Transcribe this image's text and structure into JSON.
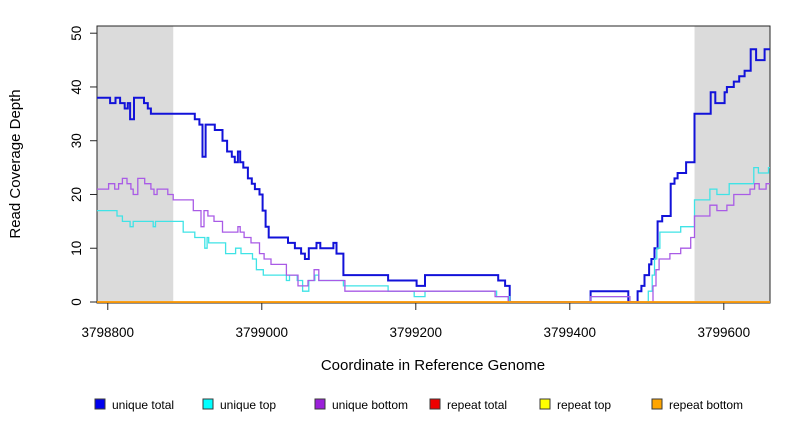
{
  "chart_data": {
    "type": "line",
    "subtype": "step",
    "title": "",
    "xlabel": "Coordinate in Reference Genome",
    "ylabel": "Read Coverage Depth",
    "xlim": [
      3798786,
      3799660
    ],
    "ylim": [
      0,
      50
    ],
    "x_ticks": [
      3798800,
      3799000,
      3799200,
      3799400,
      3799600
    ],
    "y_ticks": [
      0,
      10,
      20,
      30,
      40,
      50
    ],
    "grid": false,
    "legend_position": "bottom",
    "shade_color": "#DBDBDB",
    "shaded_x_regions": [
      [
        3798786,
        3798885
      ],
      [
        3799562,
        3799660
      ]
    ],
    "series": [
      {
        "name": "unique total",
        "color": "#1212D9",
        "legend_fill": "#0000EE",
        "width": 2,
        "points": [
          [
            3798786,
            38
          ],
          [
            3798803,
            37
          ],
          [
            3798810,
            38
          ],
          [
            3798816,
            37
          ],
          [
            3798822,
            36
          ],
          [
            3798826,
            37
          ],
          [
            3798829,
            34
          ],
          [
            3798834,
            38
          ],
          [
            3798847,
            37
          ],
          [
            3798852,
            36
          ],
          [
            3798856,
            35
          ],
          [
            3798913,
            34
          ],
          [
            3798919,
            33
          ],
          [
            3798923,
            27
          ],
          [
            3798927,
            33
          ],
          [
            3798939,
            32
          ],
          [
            3798949,
            30
          ],
          [
            3798955,
            28
          ],
          [
            3798961,
            27
          ],
          [
            3798965,
            26
          ],
          [
            3798969,
            28
          ],
          [
            3798972,
            26
          ],
          [
            3798976,
            25
          ],
          [
            3798982,
            23
          ],
          [
            3798987,
            22
          ],
          [
            3798991,
            21
          ],
          [
            3798997,
            20
          ],
          [
            3799001,
            17
          ],
          [
            3799005,
            14
          ],
          [
            3799009,
            12
          ],
          [
            3799034,
            11
          ],
          [
            3799043,
            10
          ],
          [
            3799051,
            9
          ],
          [
            3799056,
            8
          ],
          [
            3799061,
            10
          ],
          [
            3799071,
            11
          ],
          [
            3799076,
            10
          ],
          [
            3799093,
            11
          ],
          [
            3799097,
            9
          ],
          [
            3799106,
            5
          ],
          [
            3799164,
            4
          ],
          [
            3799201,
            3
          ],
          [
            3799212,
            5
          ],
          [
            3799307,
            4
          ],
          [
            3799316,
            3
          ],
          [
            3799322,
            0
          ],
          [
            3799427,
            2
          ],
          [
            3799476,
            0
          ],
          [
            3799488,
            2
          ],
          [
            3799493,
            3
          ],
          [
            3799497,
            5
          ],
          [
            3799503,
            7
          ],
          [
            3799506,
            8
          ],
          [
            3799510,
            10
          ],
          [
            3799514,
            15
          ],
          [
            3799520,
            16
          ],
          [
            3799531,
            22
          ],
          [
            3799536,
            23
          ],
          [
            3799540,
            24
          ],
          [
            3799551,
            26
          ],
          [
            3799562,
            35
          ],
          [
            3799583,
            39
          ],
          [
            3799589,
            37
          ],
          [
            3799601,
            39
          ],
          [
            3799604,
            40
          ],
          [
            3799613,
            41
          ],
          [
            3799620,
            42
          ],
          [
            3799627,
            43
          ],
          [
            3799635,
            47
          ],
          [
            3799642,
            45
          ],
          [
            3799653,
            47
          ]
        ]
      },
      {
        "name": "unique top",
        "color": "#3FE3E6",
        "legend_fill": "#00FFFF",
        "width": 1.3,
        "points": [
          [
            3798786,
            17
          ],
          [
            3798812,
            16
          ],
          [
            3798819,
            15
          ],
          [
            3798829,
            14
          ],
          [
            3798833,
            15
          ],
          [
            3798859,
            14
          ],
          [
            3798862,
            15
          ],
          [
            3798898,
            13
          ],
          [
            3798913,
            12
          ],
          [
            3798926,
            10
          ],
          [
            3798929,
            12
          ],
          [
            3798931,
            11
          ],
          [
            3798953,
            9
          ],
          [
            3798966,
            10
          ],
          [
            3798973,
            9
          ],
          [
            3798988,
            8
          ],
          [
            3798993,
            6
          ],
          [
            3799002,
            5
          ],
          [
            3799032,
            4
          ],
          [
            3799036,
            5
          ],
          [
            3799046,
            4
          ],
          [
            3799053,
            2
          ],
          [
            3799061,
            4
          ],
          [
            3799069,
            5
          ],
          [
            3799074,
            4
          ],
          [
            3799106,
            3
          ],
          [
            3799164,
            2
          ],
          [
            3799198,
            1
          ],
          [
            3799212,
            2
          ],
          [
            3799305,
            1
          ],
          [
            3799322,
            0
          ],
          [
            3799427,
            1
          ],
          [
            3799478,
            0
          ],
          [
            3799502,
            2
          ],
          [
            3799507,
            5
          ],
          [
            3799510,
            8
          ],
          [
            3799513,
            10
          ],
          [
            3799517,
            13
          ],
          [
            3799544,
            14
          ],
          [
            3799562,
            19
          ],
          [
            3799582,
            21
          ],
          [
            3799591,
            20
          ],
          [
            3799607,
            22
          ],
          [
            3799639,
            25
          ],
          [
            3799645,
            24
          ],
          [
            3799658,
            25
          ]
        ]
      },
      {
        "name": "unique bottom",
        "color": "#A95BE6",
        "legend_fill": "#9B20D9",
        "width": 1.3,
        "points": [
          [
            3798786,
            21
          ],
          [
            3798801,
            22
          ],
          [
            3798809,
            21
          ],
          [
            3798814,
            22
          ],
          [
            3798819,
            23
          ],
          [
            3798825,
            22
          ],
          [
            3798830,
            21
          ],
          [
            3798833,
            20
          ],
          [
            3798839,
            23
          ],
          [
            3798848,
            22
          ],
          [
            3798856,
            21
          ],
          [
            3798860,
            20
          ],
          [
            3798864,
            21
          ],
          [
            3798878,
            20
          ],
          [
            3798885,
            19
          ],
          [
            3798911,
            17
          ],
          [
            3798921,
            14
          ],
          [
            3798925,
            17
          ],
          [
            3798930,
            16
          ],
          [
            3798938,
            15
          ],
          [
            3798949,
            13
          ],
          [
            3798969,
            14
          ],
          [
            3798972,
            13
          ],
          [
            3798977,
            12
          ],
          [
            3798986,
            11
          ],
          [
            3798997,
            9
          ],
          [
            3799003,
            8
          ],
          [
            3799012,
            7
          ],
          [
            3799032,
            5
          ],
          [
            3799047,
            3
          ],
          [
            3799060,
            4
          ],
          [
            3799068,
            6
          ],
          [
            3799074,
            4
          ],
          [
            3799108,
            2
          ],
          [
            3799303,
            1
          ],
          [
            3799320,
            0
          ],
          [
            3799427,
            1
          ],
          [
            3799478,
            0
          ],
          [
            3799508,
            3
          ],
          [
            3799512,
            6
          ],
          [
            3799516,
            8
          ],
          [
            3799530,
            9
          ],
          [
            3799544,
            10
          ],
          [
            3799557,
            12
          ],
          [
            3799562,
            16
          ],
          [
            3799582,
            18
          ],
          [
            3799591,
            17
          ],
          [
            3799604,
            18
          ],
          [
            3799613,
            20
          ],
          [
            3799634,
            21
          ],
          [
            3799640,
            22
          ],
          [
            3799646,
            21
          ],
          [
            3799655,
            22
          ]
        ]
      },
      {
        "name": "repeat total",
        "color": "#E10E0E",
        "legend_fill": "#EE0000",
        "width": 1.3,
        "points": [
          [
            3798786,
            0
          ]
        ]
      },
      {
        "name": "repeat top",
        "color": "#FFEB00",
        "legend_fill": "#FFFF00",
        "width": 1.3,
        "points": [
          [
            3798786,
            0
          ]
        ]
      },
      {
        "name": "repeat bottom",
        "color": "#FF9D09",
        "legend_fill": "#FFA500",
        "width": 1.8,
        "points": [
          [
            3798786,
            0
          ]
        ]
      }
    ]
  }
}
